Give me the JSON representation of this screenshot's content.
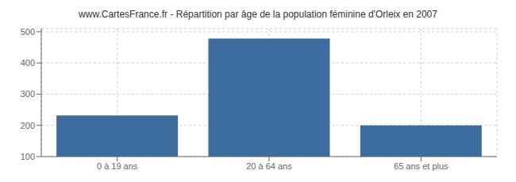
{
  "chart_data": {
    "type": "bar",
    "title": "www.CartesFrance.fr - Répartition par âge de la population féminine d'Orleix en 2007",
    "categories": [
      "0 à 19 ans",
      "20 à 64 ans",
      "65 ans et plus"
    ],
    "values": [
      232,
      478,
      200
    ],
    "color": "#3d6d9e",
    "ylim": [
      100,
      510
    ],
    "yticks": [
      100,
      200,
      300,
      400,
      500
    ],
    "grid": true
  }
}
